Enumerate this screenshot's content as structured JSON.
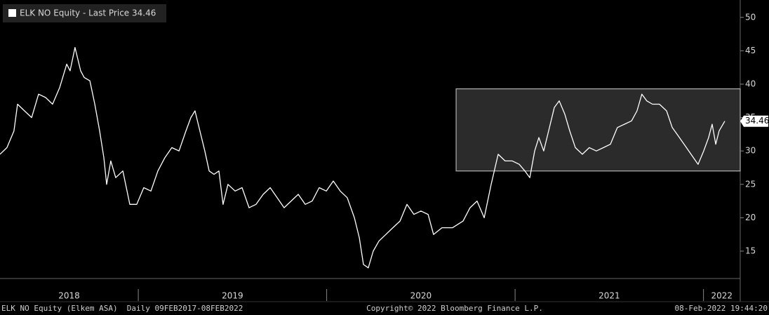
{
  "chart_data": {
    "type": "line",
    "series": [
      {
        "name": "ELK NO Equity - Last Price 34.46",
        "color": "#ffffff",
        "x": [
          2018.266,
          2018.303,
          2018.34,
          2018.359,
          2018.396,
          2018.434,
          2018.471,
          2018.508,
          2018.545,
          2018.583,
          2018.62,
          2018.638,
          2018.664,
          2018.694,
          2018.713,
          2018.743,
          2018.769,
          2018.795,
          2018.817,
          2018.832,
          2018.854,
          2018.88,
          2018.918,
          2018.955,
          2018.992,
          2019.029,
          2019.067,
          2019.104,
          2019.141,
          2019.178,
          2019.216,
          2019.253,
          2019.279,
          2019.301,
          2019.327,
          2019.353,
          2019.376,
          2019.402,
          2019.428,
          2019.45,
          2019.476,
          2019.514,
          2019.551,
          2019.588,
          2019.625,
          2019.663,
          2019.7,
          2019.737,
          2019.774,
          2019.811,
          2019.849,
          2019.886,
          2019.923,
          2019.96,
          2019.998,
          2020.035,
          2020.072,
          2020.109,
          2020.147,
          2020.173,
          2020.195,
          2020.221,
          2020.247,
          2020.277,
          2020.314,
          2020.351,
          2020.389,
          2020.426,
          2020.463,
          2020.5,
          2020.538,
          2020.567,
          2020.612,
          2020.668,
          2020.724,
          2020.761,
          2020.798,
          2020.836,
          2020.873,
          2020.91,
          2020.947,
          2020.985,
          2021.022,
          2021.052,
          2021.078,
          2021.104,
          2021.126,
          2021.152,
          2021.178,
          2021.208,
          2021.234,
          2021.264,
          2021.29,
          2021.32,
          2021.357,
          2021.394,
          2021.431,
          2021.469,
          2021.506,
          2021.543,
          2021.58,
          2021.618,
          2021.647,
          2021.673,
          2021.699,
          2021.729,
          2021.766,
          2021.804,
          2021.834,
          2021.86,
          2021.897,
          2021.934,
          2021.971,
          2022.001,
          2022.027,
          2022.046,
          2022.065,
          2022.083,
          2022.113
        ],
        "values": [
          29.5,
          30.5,
          33,
          37,
          36,
          35,
          38.5,
          38,
          37,
          39.5,
          43,
          42,
          45.5,
          42,
          41,
          40.5,
          37,
          33,
          29,
          25,
          28.5,
          26,
          27,
          22,
          22,
          24.5,
          24,
          27,
          29,
          30.5,
          30,
          33,
          35,
          36,
          33,
          30,
          27,
          26.5,
          27,
          22,
          25,
          24,
          24.5,
          21.5,
          22,
          23.5,
          24.5,
          23,
          21.5,
          22.5,
          23.5,
          22,
          22.5,
          24.5,
          24,
          25.5,
          24,
          23,
          20,
          17,
          13,
          12.5,
          15,
          16.5,
          17.5,
          18.5,
          19.5,
          22,
          20.5,
          21,
          20.5,
          17.5,
          18.5,
          18.5,
          19.5,
          21.5,
          22.5,
          20,
          25,
          29.5,
          28.5,
          28.5,
          28,
          27,
          26,
          30,
          32,
          30,
          33,
          36.5,
          37.5,
          35.5,
          33,
          30.5,
          29.5,
          30.5,
          30,
          30.5,
          31,
          33.5,
          34,
          34.5,
          36,
          38.5,
          37.5,
          37,
          37,
          36,
          33.5,
          32.5,
          31,
          29.5,
          28,
          30,
          32,
          34,
          31,
          33,
          34.46
        ],
        "last_value": 34.46,
        "last_label": "34.46"
      }
    ],
    "band": {
      "x_start": 2020.687,
      "low": 27,
      "high": 39.3
    },
    "xlim": [
      2018.266,
      2022.195
    ],
    "xticks": [
      2019,
      2020,
      2021,
      2022
    ],
    "year_labels": [
      "2018",
      "2019",
      "2020",
      "2021",
      "2022"
    ],
    "ylim": [
      10.9,
      52.6
    ],
    "yticks": [
      15,
      20,
      25,
      30,
      35,
      40,
      45,
      50
    ],
    "footer": {
      "left": "ELK NO Equity (Elkem ASA)  Daily 09FEB2017-08FEB2022",
      "center": "Copyright© 2022 Bloomberg Finance L.P.",
      "right": "08-Feb-2022 19:44:20"
    }
  }
}
